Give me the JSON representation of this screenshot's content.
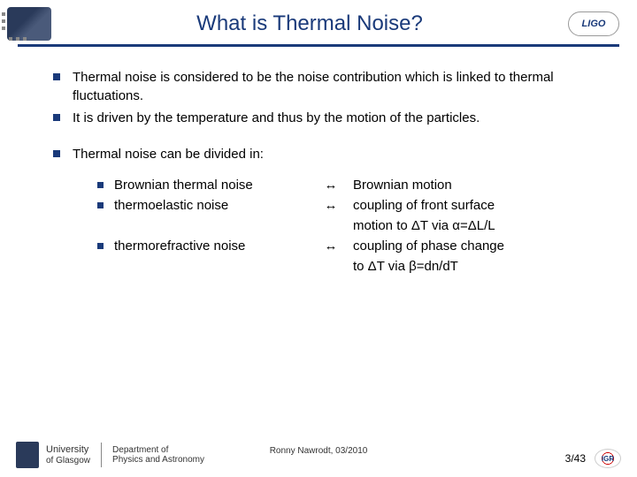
{
  "title": "What is Thermal Noise?",
  "logo_right_text": "LIGO",
  "colors": {
    "title": "#1a3a7a",
    "bullet": "#1a3a7a",
    "divider": "#1a3a7a",
    "text": "#000000",
    "background": "#ffffff"
  },
  "bullets": [
    "Thermal noise is considered to be the noise contribution which is linked to thermal fluctuations.",
    "It is driven by the temperature and thus by the motion of the particles.",
    "Thermal noise can be divided in:"
  ],
  "sub_items": [
    {
      "label": "Brownian thermal noise",
      "arrow": "↔",
      "desc": "Brownian motion"
    },
    {
      "label": "thermoelastic noise",
      "arrow": "↔",
      "desc": "coupling of front surface"
    },
    {
      "label": "",
      "arrow": "",
      "desc": "motion to ΔT via α=ΔL/L"
    },
    {
      "label": "thermorefractive noise",
      "arrow": "↔",
      "desc": "coupling of phase change"
    },
    {
      "label": "",
      "arrow": "",
      "desc": "to ΔT via β=dn/dT"
    }
  ],
  "footer": {
    "university_line1": "University",
    "university_line2": "of Glasgow",
    "department_line1": "Department of",
    "department_line2": "Physics and Astronomy",
    "center": "Ronny Nawrodt, 03/2010",
    "page": "3/43",
    "igr": "IGR"
  }
}
